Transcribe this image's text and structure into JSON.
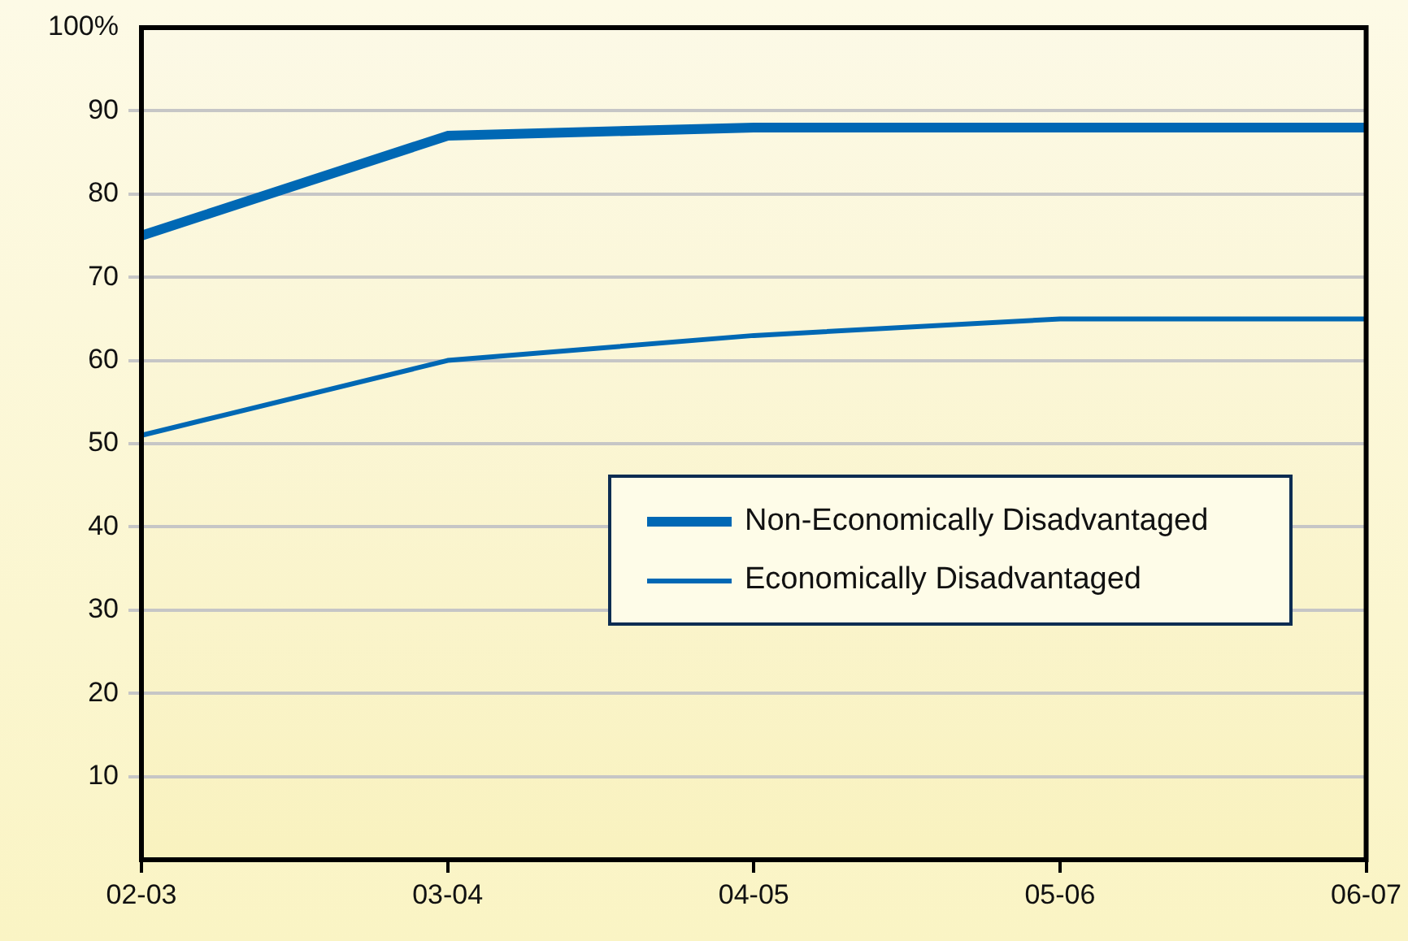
{
  "chart_data": {
    "type": "line",
    "categories": [
      "02-03",
      "03-04",
      "04-05",
      "05-06",
      "06-07"
    ],
    "series": [
      {
        "name": "Non-Economically Disadvantaged",
        "color": "#0068b4",
        "values": [
          75,
          87,
          88,
          88,
          88
        ]
      },
      {
        "name": "Economically Disadvantaged",
        "color": "#0068b4",
        "values": [
          51,
          60,
          63,
          65,
          65
        ]
      }
    ],
    "ylim": [
      0,
      100
    ],
    "yticks": [
      10,
      20,
      30,
      40,
      50,
      60,
      70,
      80,
      90,
      {
        "value": 100,
        "label": "100%"
      }
    ],
    "grid": "y",
    "legend": "right",
    "marker": "none",
    "line_style": "solid"
  }
}
